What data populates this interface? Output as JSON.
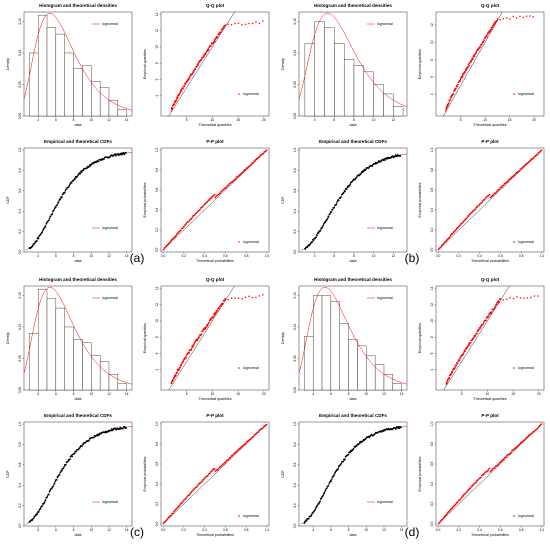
{
  "chart_data": [
    {
      "panel": "(a)",
      "colors": {
        "fit": "#ff0000",
        "data": "#000000",
        "hist_fill": "#ffffff"
      },
      "plots": [
        {
          "type": "bar",
          "title": "Histogram and theoretical densities",
          "xlabel": "data",
          "ylabel": "Density",
          "legend": "lognormal",
          "legend_position": "top-right",
          "bins": [
            3,
            4,
            5,
            6,
            7,
            8,
            9,
            10,
            11,
            12,
            13,
            14
          ],
          "values": [
            0.1,
            0.16,
            0.14,
            0.13,
            0.1,
            0.075,
            0.08,
            0.055,
            0.045,
            0.025,
            0.01
          ],
          "xlim": [
            2.4,
            14.6
          ],
          "ylim": [
            0,
            0.165
          ],
          "xticks": [
            4,
            6,
            8,
            10,
            12,
            14
          ],
          "yticks": [
            0.0,
            0.05,
            0.1,
            0.15
          ],
          "yticklabels": [
            "0.00",
            "0.05",
            "0.10",
            "0.15"
          ]
        },
        {
          "type": "scatter",
          "title": "Q-Q plot",
          "xlabel": "Theoretical quantiles",
          "ylabel": "Empirical quantiles",
          "legend": "lognormal",
          "legend_position": "bottom-right",
          "shape": "qq",
          "xlim": [
            0,
            21
          ],
          "ylim": [
            1.5,
            14.3
          ],
          "xticks": [
            5,
            10,
            15,
            20
          ],
          "yticks": [
            4,
            6,
            8,
            10,
            12,
            14
          ]
        },
        {
          "type": "line",
          "title": "Empirical and theoretical CDFs",
          "xlabel": "data",
          "ylabel": "CDF",
          "legend": "lognormal",
          "legend_position": "bottom-right",
          "xlim": [
            2.4,
            14.6
          ],
          "ylim": [
            0,
            1.02
          ],
          "xticks": [
            4,
            6,
            8,
            10,
            12,
            14
          ],
          "yticks": [
            0.0,
            0.2,
            0.4,
            0.6,
            0.8,
            1.0
          ],
          "yticklabels": [
            "0.0",
            "0.2",
            "0.4",
            "0.6",
            "0.8",
            "1.0"
          ]
        },
        {
          "type": "scatter",
          "title": "P-P plot",
          "xlabel": "Theoretical probabilities",
          "ylabel": "Empirical probabilities",
          "legend": "lognormal",
          "legend_position": "bottom-right",
          "shape": "pp",
          "xlim": [
            -0.02,
            1.02
          ],
          "ylim": [
            -0.02,
            1.02
          ],
          "xticks": [
            0.0,
            0.2,
            0.4,
            0.6,
            0.8,
            1.0
          ],
          "yticks": [
            0.0,
            0.2,
            0.4,
            0.6,
            0.8,
            1.0
          ],
          "xticklabels": [
            "0.0",
            "0.2",
            "0.4",
            "0.6",
            "0.8",
            "1.0"
          ],
          "yticklabels": [
            "0.0",
            "0.2",
            "0.4",
            "0.6",
            "0.8",
            "1.0"
          ]
        }
      ]
    },
    {
      "panel": "(b)",
      "colors": {
        "fit": "#ff0000",
        "data": "#000000",
        "hist_fill": "#ffffff"
      },
      "plots": [
        {
          "type": "bar",
          "title": "Histogram and theoretical densities",
          "xlabel": "data",
          "ylabel": "Density",
          "legend": "lognormal",
          "legend_position": "top-right",
          "bins": [
            3,
            4,
            5,
            6,
            7,
            8,
            9,
            10,
            11,
            12,
            13
          ],
          "values": [
            0.115,
            0.15,
            0.14,
            0.115,
            0.09,
            0.08,
            0.07,
            0.05,
            0.035,
            0.015
          ],
          "xlim": [
            2.4,
            13.4
          ],
          "ylim": [
            0,
            0.165
          ],
          "xticks": [
            4,
            6,
            8,
            10,
            12
          ],
          "yticks": [
            0.0,
            0.05,
            0.1,
            0.15
          ],
          "yticklabels": [
            "0.00",
            "0.05",
            "0.10",
            "0.15"
          ]
        },
        {
          "type": "scatter",
          "title": "Q-Q plot",
          "xlabel": "Theoretical quantiles",
          "ylabel": "Empirical quantiles",
          "legend": "lognormal",
          "legend_position": "bottom-right",
          "shape": "qq",
          "xlim": [
            0,
            22
          ],
          "ylim": [
            1.5,
            13.5
          ],
          "xticks": [
            5,
            10,
            15,
            20
          ],
          "yticks": [
            4,
            6,
            8,
            10,
            12
          ]
        },
        {
          "type": "line",
          "title": "Empirical and theoretical CDFs",
          "xlabel": "data",
          "ylabel": "CDF",
          "legend": "lognormal",
          "legend_position": "bottom-right",
          "xlim": [
            2.4,
            13.4
          ],
          "ylim": [
            0,
            1.02
          ],
          "xticks": [
            4,
            6,
            8,
            10,
            12
          ],
          "yticks": [
            0.0,
            0.2,
            0.4,
            0.6,
            0.8,
            1.0
          ],
          "yticklabels": [
            "0.0",
            "0.2",
            "0.4",
            "0.6",
            "0.8",
            "1.0"
          ]
        },
        {
          "type": "scatter",
          "title": "P-P plot",
          "xlabel": "Theoretical probabilities",
          "ylabel": "Empirical probabilities",
          "legend": "lognormal",
          "legend_position": "bottom-right",
          "shape": "pp",
          "xlim": [
            -0.02,
            1.02
          ],
          "ylim": [
            -0.02,
            1.02
          ],
          "xticks": [
            0.0,
            0.2,
            0.4,
            0.6,
            0.8,
            1.0
          ],
          "yticks": [
            0.0,
            0.2,
            0.4,
            0.6,
            0.8,
            1.0
          ],
          "xticklabels": [
            "0.0",
            "0.2",
            "0.4",
            "0.6",
            "0.8",
            "1.0"
          ],
          "yticklabels": [
            "0.0",
            "0.2",
            "0.4",
            "0.6",
            "0.8",
            "1.0"
          ]
        }
      ]
    },
    {
      "panel": "(c)",
      "colors": {
        "fit": "#ff0000",
        "data": "#000000",
        "hist_fill": "#ffffff"
      },
      "plots": [
        {
          "type": "bar",
          "title": "Histogram and theoretical densities",
          "xlabel": "data",
          "ylabel": "Density",
          "legend": "lognormal",
          "legend_position": "top-right",
          "bins": [
            3,
            4,
            5,
            6,
            7,
            8,
            9,
            10,
            11,
            12,
            13,
            14
          ],
          "values": [
            0.09,
            0.16,
            0.145,
            0.13,
            0.1,
            0.08,
            0.075,
            0.055,
            0.045,
            0.025,
            0.01
          ],
          "xlim": [
            2.4,
            14.6
          ],
          "ylim": [
            0,
            0.165
          ],
          "xticks": [
            4,
            6,
            8,
            10,
            12,
            14
          ],
          "yticks": [
            0.0,
            0.05,
            0.1,
            0.15
          ],
          "yticklabels": [
            "0.00",
            "0.05",
            "0.10",
            "0.15"
          ]
        },
        {
          "type": "scatter",
          "title": "Q-Q plot",
          "xlabel": "Theoretical quantiles",
          "ylabel": "Empirical quantiles",
          "legend": "lognormal",
          "legend_position": "bottom-right",
          "shape": "qq",
          "xlim": [
            0,
            21
          ],
          "ylim": [
            1.5,
            14.3
          ],
          "xticks": [
            5,
            10,
            15,
            20
          ],
          "yticks": [
            4,
            6,
            8,
            10,
            12,
            14
          ]
        },
        {
          "type": "line",
          "title": "Empirical and theoretical CDFs",
          "xlabel": "data",
          "ylabel": "CDF",
          "legend": "lognormal",
          "legend_position": "bottom-right",
          "xlim": [
            2.4,
            14.6
          ],
          "ylim": [
            0,
            1.02
          ],
          "xticks": [
            4,
            6,
            8,
            10,
            12,
            14
          ],
          "yticks": [
            0.0,
            0.2,
            0.4,
            0.6,
            0.8,
            1.0
          ],
          "yticklabels": [
            "0.0",
            "0.2",
            "0.4",
            "0.6",
            "0.8",
            "1.0"
          ]
        },
        {
          "type": "scatter",
          "title": "P-P plot",
          "xlabel": "Theoretical probabilities",
          "ylabel": "Empirical probabilities",
          "legend": "lognormal",
          "legend_position": "bottom-right",
          "shape": "pp",
          "xlim": [
            -0.02,
            1.02
          ],
          "ylim": [
            -0.02,
            1.02
          ],
          "xticks": [
            0.0,
            0.2,
            0.4,
            0.6,
            0.8,
            1.0
          ],
          "yticks": [
            0.0,
            0.2,
            0.4,
            0.6,
            0.8,
            1.0
          ],
          "xticklabels": [
            "0.0",
            "0.2",
            "0.4",
            "0.6",
            "0.8",
            "1.0"
          ],
          "yticklabels": [
            "0.0",
            "0.2",
            "0.4",
            "0.6",
            "0.8",
            "1.0"
          ]
        }
      ]
    },
    {
      "panel": "(d)",
      "colors": {
        "fit": "#ff0000",
        "data": "#000000",
        "hist_fill": "#ffffff"
      },
      "plots": [
        {
          "type": "bar",
          "title": "Histogram and theoretical densities",
          "xlabel": "data",
          "ylabel": "Density",
          "legend": "lognormal",
          "legend_position": "top-right",
          "bins": [
            3,
            4,
            5,
            6,
            7,
            8,
            9,
            10,
            11,
            12,
            13,
            14
          ],
          "values": [
            0.085,
            0.15,
            0.15,
            0.14,
            0.105,
            0.08,
            0.07,
            0.055,
            0.04,
            0.025,
            0.01
          ],
          "xlim": [
            2.4,
            14.6
          ],
          "ylim": [
            0,
            0.165
          ],
          "xticks": [
            4,
            6,
            8,
            10,
            12,
            14
          ],
          "yticks": [
            0.0,
            0.05,
            0.1,
            0.15
          ],
          "yticklabels": [
            "0.00",
            "0.05",
            "0.10",
            "0.15"
          ]
        },
        {
          "type": "scatter",
          "title": "Q-Q plot",
          "xlabel": "Theoretical quantiles",
          "ylabel": "Empirical quantiles",
          "legend": "lognormal",
          "legend_position": "bottom-right",
          "shape": "qq",
          "xlim": [
            0,
            21
          ],
          "ylim": [
            1.5,
            14.3
          ],
          "xticks": [
            5,
            10,
            15,
            20
          ],
          "yticks": [
            4,
            6,
            8,
            10,
            12,
            14
          ]
        },
        {
          "type": "line",
          "title": "Empirical and theoretical CDFs",
          "xlabel": "data",
          "ylabel": "CDF",
          "legend": "lognormal",
          "legend_position": "bottom-right",
          "xlim": [
            2.4,
            14.6
          ],
          "ylim": [
            0,
            1.02
          ],
          "xticks": [
            4,
            6,
            8,
            10,
            12,
            14
          ],
          "yticks": [
            0.0,
            0.2,
            0.4,
            0.6,
            0.8,
            1.0
          ],
          "yticklabels": [
            "0.0",
            "0.2",
            "0.4",
            "0.6",
            "0.8",
            "1.0"
          ]
        },
        {
          "type": "scatter",
          "title": "P-P plot",
          "xlabel": "Theoretical probabilities",
          "ylabel": "Empirical probabilities",
          "legend": "lognormal",
          "legend_position": "bottom-right",
          "shape": "pp",
          "xlim": [
            -0.02,
            1.02
          ],
          "ylim": [
            -0.02,
            1.02
          ],
          "xticks": [
            0.0,
            0.2,
            0.4,
            0.6,
            0.8,
            1.0
          ],
          "yticks": [
            0.0,
            0.2,
            0.4,
            0.6,
            0.8,
            1.0
          ],
          "xticklabels": [
            "0.0",
            "0.2",
            "0.4",
            "0.6",
            "0.8",
            "1.0"
          ],
          "yticklabels": [
            "0.0",
            "0.2",
            "0.4",
            "0.6",
            "0.8",
            "1.0"
          ]
        }
      ]
    }
  ]
}
